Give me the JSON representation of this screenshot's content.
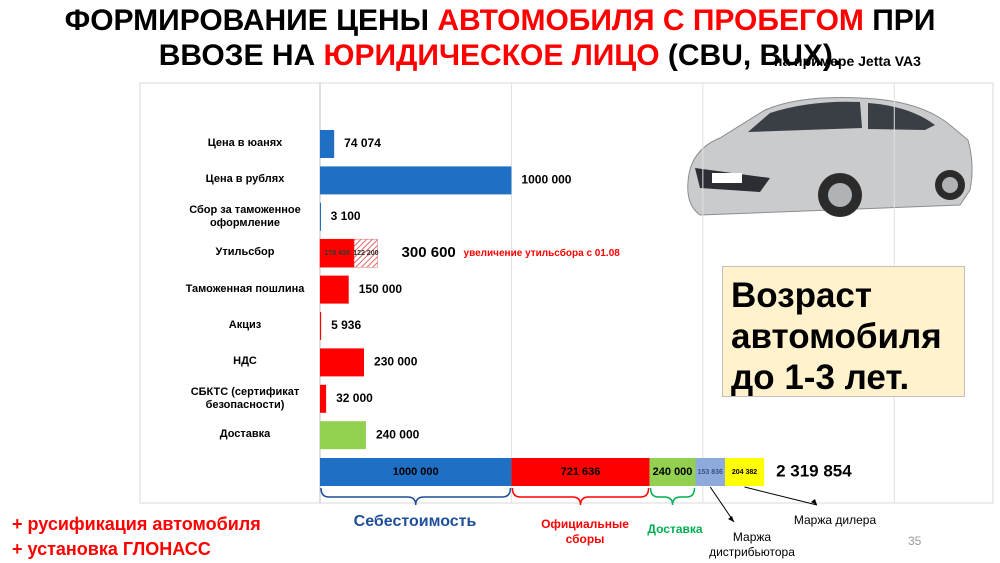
{
  "title_lines": [
    [
      {
        "text": "ФОРМИРОВАНИЕ ЦЕНЫ ",
        "color": "#000000"
      },
      {
        "text": "АВТОМОБИЛЯ С ПРОБЕГОМ",
        "color": "#ff0000"
      },
      {
        "text": " ПРИ",
        "color": "#000000"
      }
    ],
    [
      {
        "text": "ВВОЗЕ НА ",
        "color": "#000000"
      },
      {
        "text": "ЮРИДИЧЕСКОЕ ЛИЦО",
        "color": "#ff0000"
      },
      {
        "text": " (CBU, BUX).",
        "color": "#000000"
      }
    ]
  ],
  "subtitle": "на примере Jetta VA3",
  "chart_data": {
    "type": "bar",
    "orientation": "horizontal",
    "categories": [
      "Цена в юанях",
      "Цена в рублях",
      "Сбор за таможенное оформление",
      "Утильсбор",
      "Таможенная пошлина",
      "Акциз",
      "НДС",
      "СБКТС (сертификат безопасности)",
      "Доставка"
    ],
    "values": [
      74074,
      1000000,
      3100,
      300600,
      150000,
      5936,
      230000,
      32000,
      240000
    ],
    "value_labels": [
      "74 074",
      "1000 000",
      "3 100",
      "300 600",
      "150 000",
      "5 936",
      "230 000",
      "32 000",
      "240 000"
    ],
    "colors": [
      "#1f6fc5",
      "#1f6fc5",
      "#1f6fc5",
      "#ff0000",
      "#ff0000",
      "#ff0000",
      "#ff0000",
      "#ff0000",
      "#92d050"
    ],
    "parts": [
      null,
      null,
      null,
      {
        "values": [
          178400,
          122200
        ],
        "value_labels": [
          "178 400",
          "122 200"
        ],
        "colors": [
          "#ff0000",
          "#e06666"
        ]
      },
      null,
      null,
      null,
      null,
      null
    ],
    "annotation": "увеличение утильсбора с 01.08",
    "xlim": [
      0,
      3500000
    ],
    "xticks": [
      0,
      1000000,
      2000000,
      3000000
    ],
    "grid": true,
    "total_bar": {
      "values": [
        1000000,
        721636,
        240000,
        153836,
        204382
      ],
      "value_labels": [
        "1000 000",
        "721 636",
        "240 000",
        "153 836",
        "204 382"
      ],
      "colors": [
        "#1f6fc5",
        "#ff0000",
        "#92d050",
        "#8ea9db",
        "#ffff00"
      ],
      "total": 2319854,
      "total_label": "2 319 854",
      "group_labels": [
        "Себестоимость",
        "Официальные сборы",
        "Доставка",
        "Маржа дистрибьютора",
        "Маржа дилера"
      ],
      "group_label_colors": [
        "#1f4e9b",
        "#ff0000",
        "#00b050",
        "#000000",
        "#000000"
      ]
    }
  },
  "callout": "Возраст автомобиля до 1-3 лет.",
  "notes": [
    "+ русификация автомобиля",
    "+ установка ГЛОНАСС"
  ],
  "page_number": "35"
}
